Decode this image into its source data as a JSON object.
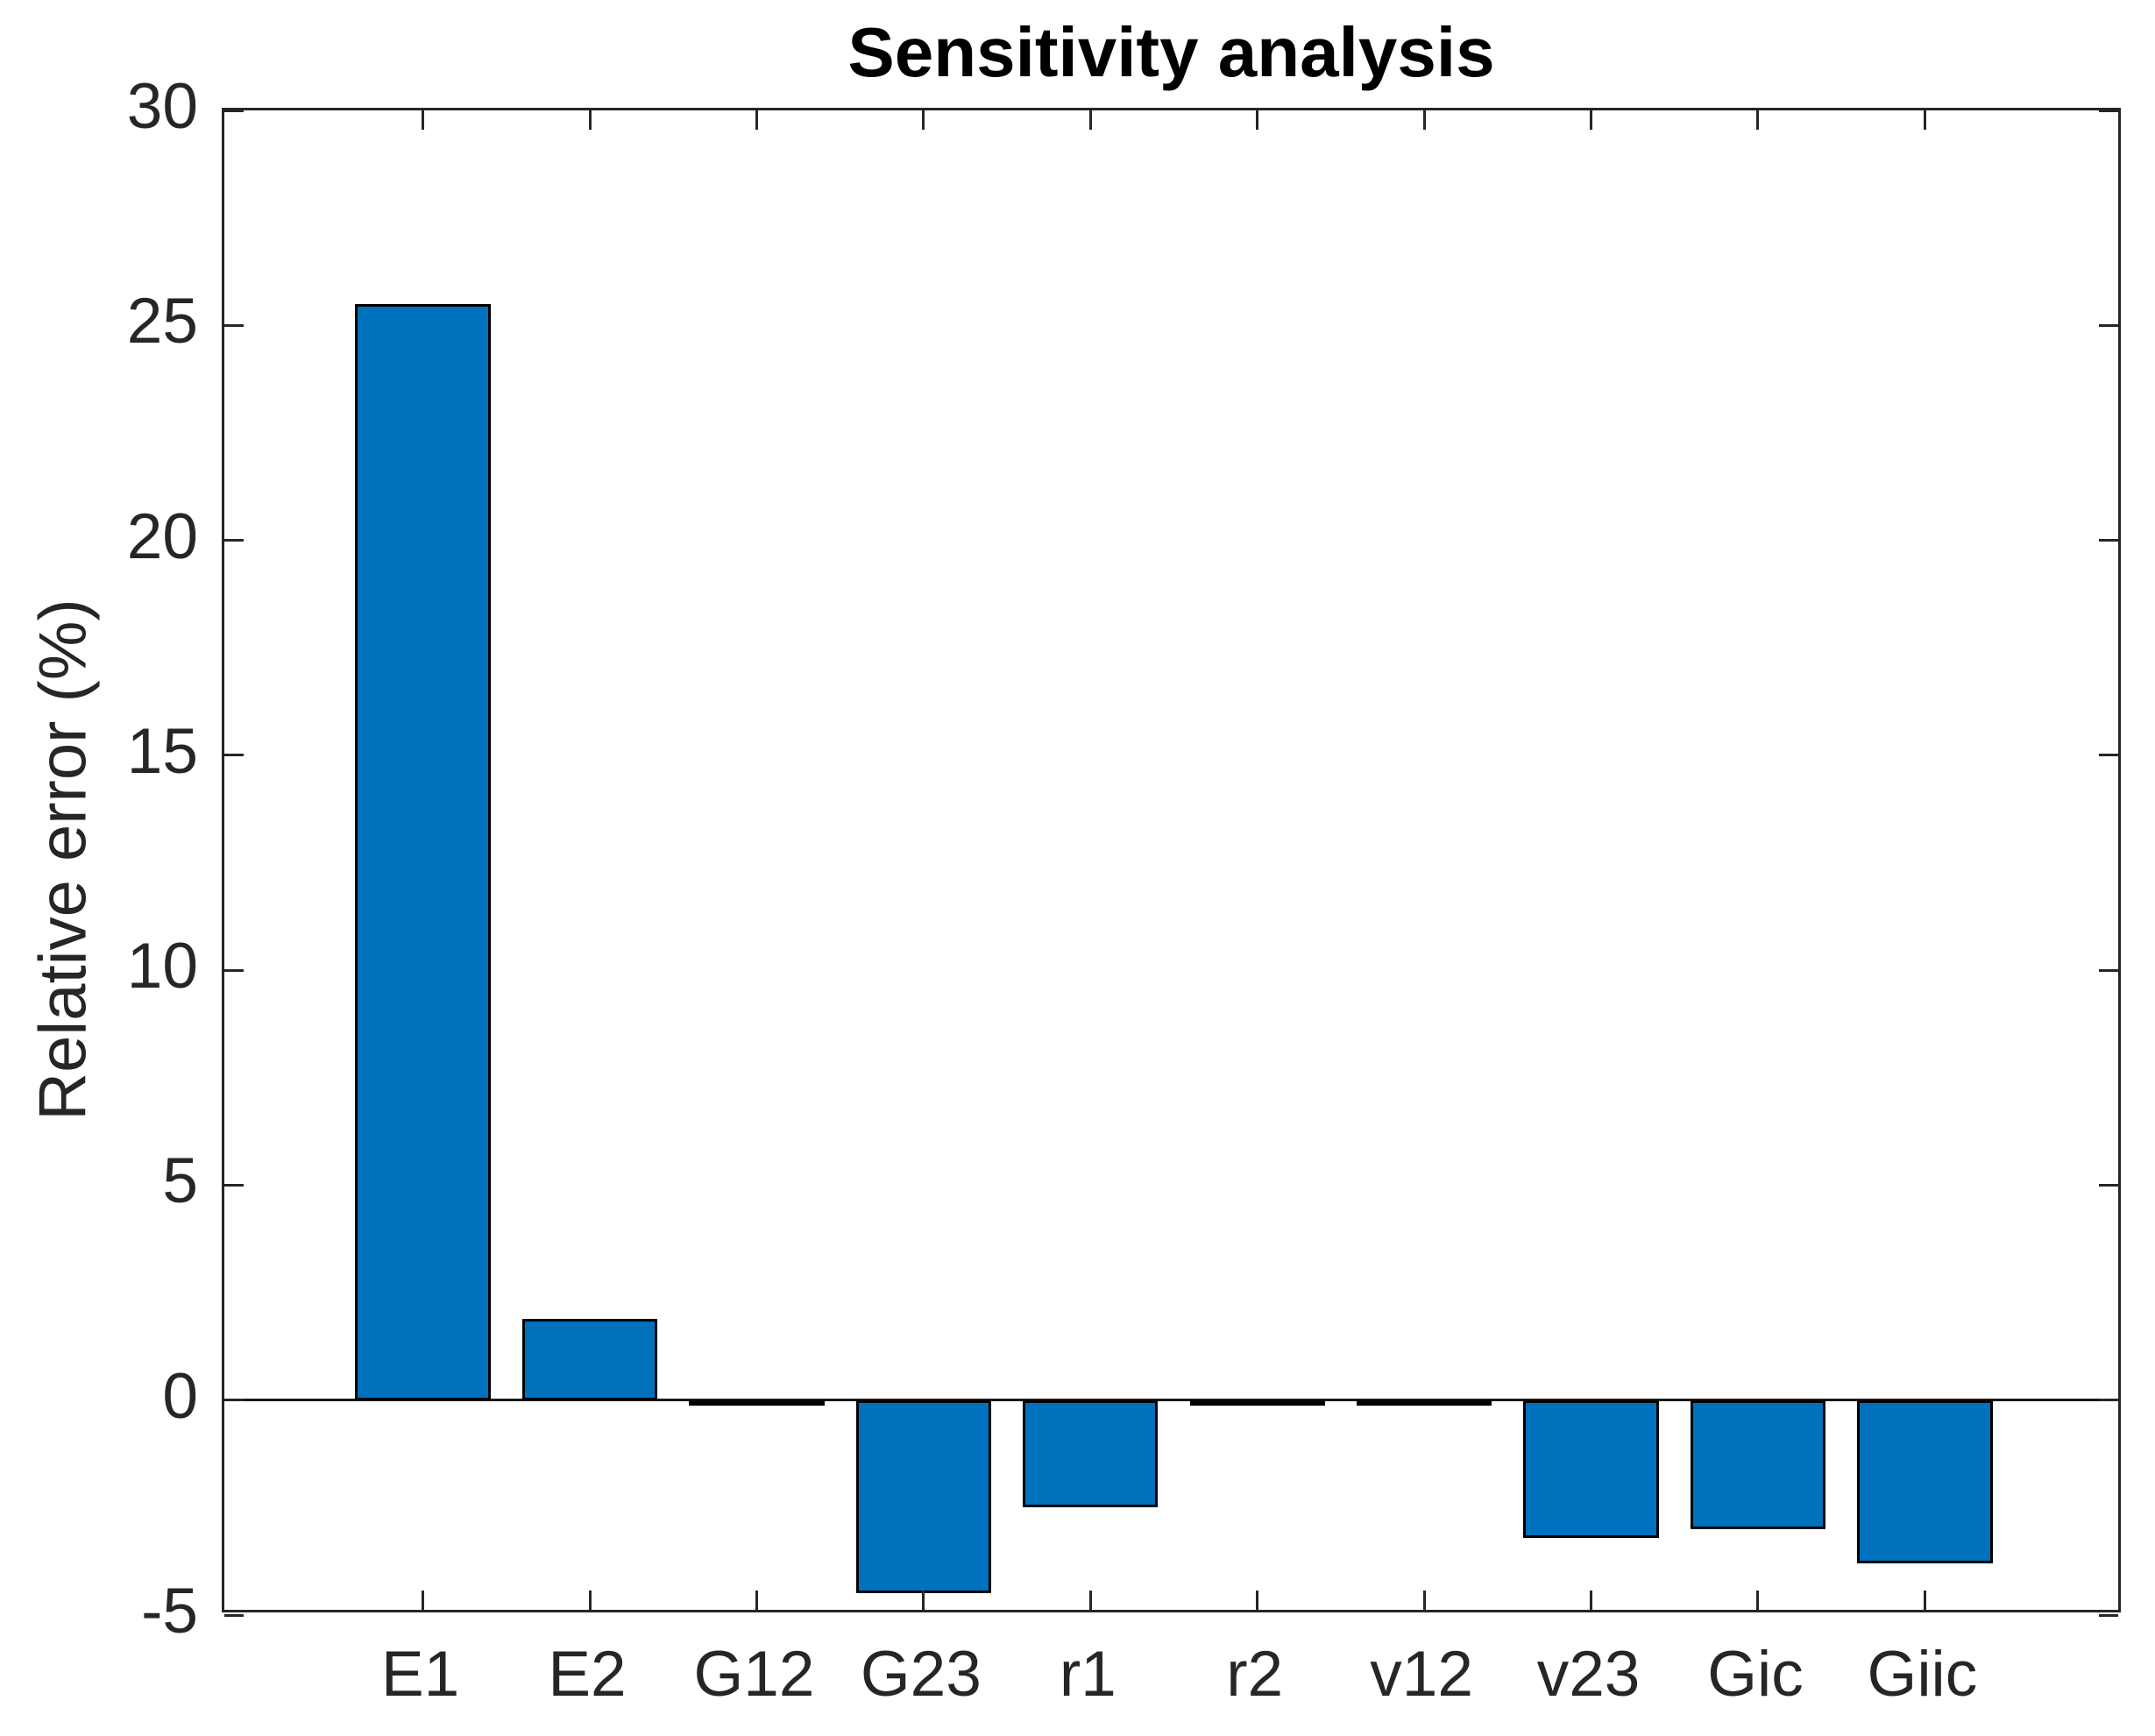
{
  "chart_data": {
    "type": "bar",
    "title": "Sensitivity analysis",
    "ylabel": "Relative error (%)",
    "xlabel": "",
    "categories": [
      "E1",
      "E2",
      "G12",
      "G23",
      "r1",
      "r2",
      "v12",
      "v23",
      "Gic",
      "Giic"
    ],
    "values": [
      25.5,
      1.9,
      -0.05,
      -4.5,
      -2.5,
      -0.03,
      -0.03,
      -3.2,
      -3.0,
      -3.8
    ],
    "ylim": [
      -5,
      30
    ],
    "yticks": [
      -5,
      0,
      5,
      10,
      15,
      20,
      25,
      30
    ],
    "baseline_value": 0,
    "grid": false,
    "legend": "none",
    "bar_color": "#0072BD",
    "bar_edge_color": "#000000",
    "axis_color": "#262626",
    "title_color": "#000000",
    "xlim": [
      -0.19,
      11.19
    ],
    "bar_width_frac": 0.81
  }
}
